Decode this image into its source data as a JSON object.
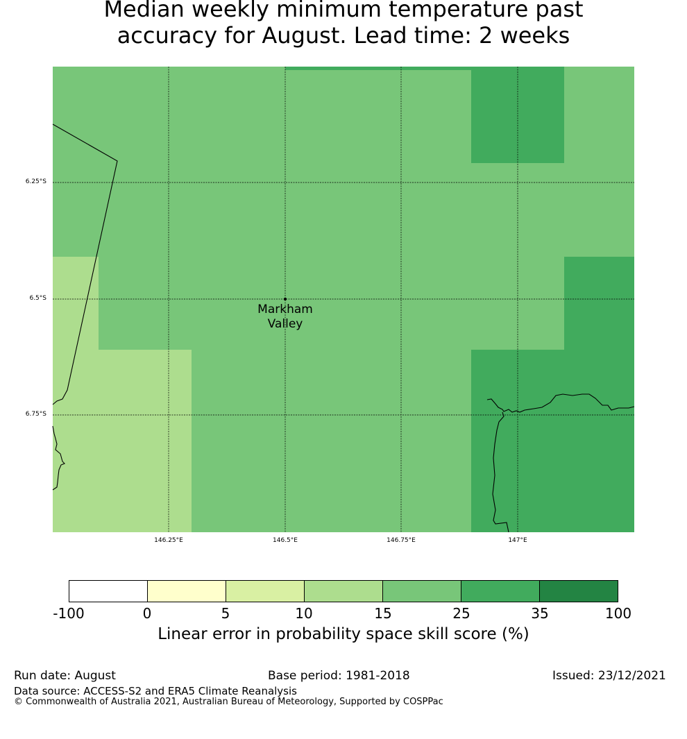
{
  "title_line1": "Median weekly minimum temperature past",
  "title_line2": "accuracy for August. Lead time: 2 weeks",
  "map": {
    "place_name_line1": "Markham",
    "place_name_line2": "Valley",
    "longitude_labels": [
      "146.25°E",
      "146.5°E",
      "146.75°E",
      "147°E"
    ],
    "latitude_labels": [
      "6.25°S",
      "6.5°S",
      "6.75°S"
    ]
  },
  "colorbar": {
    "title": "Linear error in probability space skill score (%)",
    "ticks": [
      "-100",
      "0",
      "5",
      "10",
      "15",
      "25",
      "35",
      "100"
    ],
    "colors": [
      "#ffffff",
      "#ffffcc",
      "#d9f0a3",
      "#addd8e",
      "#78c679",
      "#41ab5d",
      "#238443"
    ]
  },
  "footer": {
    "run_date": "Run date: August",
    "base_period": "Base period: 1981-2018",
    "issued": "Issued: 23/12/2021",
    "data_source": "Data source: ACCESS-S2 and ERA5 Climate Reanalysis",
    "copyright": "© Commonwealth of Australia 2021, Australian Bureau of Meteorology, Supported by COSPPac"
  }
}
